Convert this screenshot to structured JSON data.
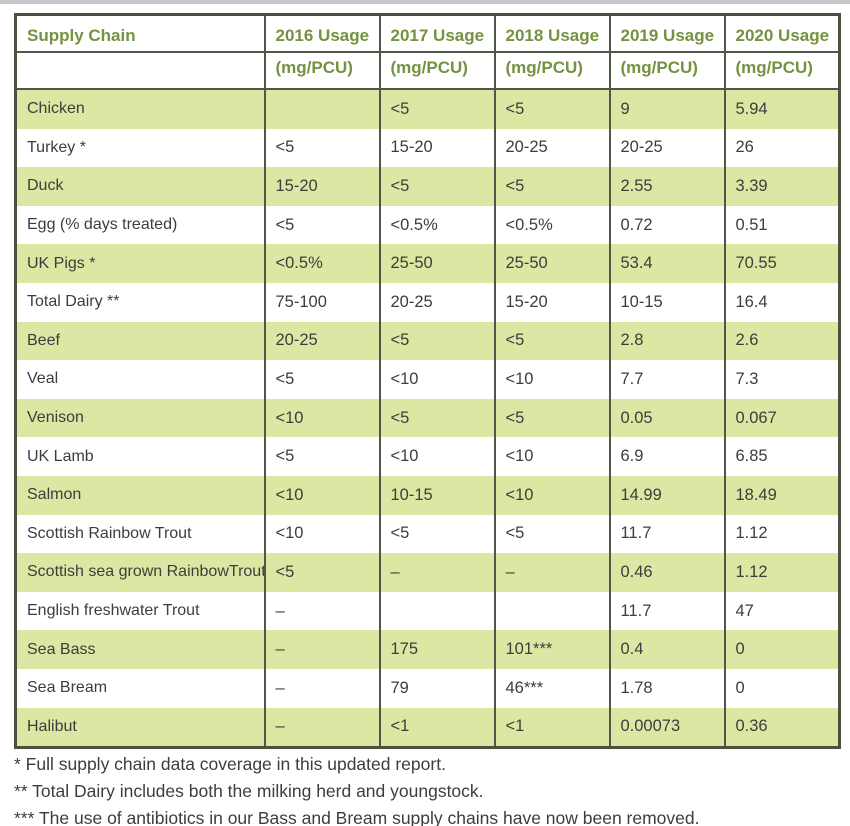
{
  "table": {
    "columns": [
      {
        "title": "Supply Chain",
        "subtitle": ""
      },
      {
        "title": "2016 Usage",
        "subtitle": "(mg/PCU)"
      },
      {
        "title": "2017 Usage",
        "subtitle": "(mg/PCU)"
      },
      {
        "title": "2018 Usage",
        "subtitle": "(mg/PCU)"
      },
      {
        "title": "2019 Usage",
        "subtitle": "(mg/PCU)"
      },
      {
        "title": "2020 Usage",
        "subtitle": "(mg/PCU)"
      }
    ],
    "rows": [
      {
        "name": "Chicken",
        "values": [
          "",
          "<5",
          "<5",
          "9",
          "5.94"
        ]
      },
      {
        "name": "Turkey *",
        "values": [
          "<5",
          "15-20",
          "20-25",
          "20-25",
          "26"
        ]
      },
      {
        "name": "Duck",
        "values": [
          "15-20",
          "<5",
          "<5",
          "2.55",
          "3.39"
        ]
      },
      {
        "name": "Egg (% days treated)",
        "values": [
          "<5",
          "<0.5%",
          "<0.5%",
          "0.72",
          "0.51"
        ]
      },
      {
        "name": "UK Pigs *",
        "values": [
          "<0.5%",
          "25-50",
          "25-50",
          "53.4",
          "70.55"
        ]
      },
      {
        "name": "Total Dairy **",
        "values": [
          "75-100",
          "20-25",
          "15-20",
          "10-15",
          "16.4"
        ]
      },
      {
        "name": "Beef",
        "values": [
          "20-25",
          "<5",
          "<5",
          "2.8",
          "2.6"
        ]
      },
      {
        "name": "Veal",
        "values": [
          "<5",
          "<10",
          "<10",
          "7.7",
          "7.3"
        ]
      },
      {
        "name": "Venison",
        "values": [
          "<10",
          "<5",
          "<5",
          "0.05",
          "0.067"
        ]
      },
      {
        "name": "UK Lamb",
        "values": [
          "<5",
          "<10",
          "<10",
          "6.9",
          "6.85"
        ]
      },
      {
        "name": "Salmon",
        "values": [
          "<10",
          "10-15",
          "<10",
          "14.99",
          "18.49"
        ]
      },
      {
        "name": "Scottish Rainbow Trout",
        "values": [
          "<10",
          "<5",
          "<5",
          "11.7",
          "1.12"
        ]
      },
      {
        "name": "Scottish sea grown RainbowTrout",
        "values": [
          "<5",
          "–",
          "–",
          "0.46",
          "1.12"
        ]
      },
      {
        "name": "English freshwater Trout",
        "values": [
          "–",
          "",
          "",
          "11.7",
          "47"
        ]
      },
      {
        "name": "Sea Bass",
        "values": [
          "–",
          "175",
          "101***",
          "0.4",
          "0"
        ]
      },
      {
        "name": "Sea Bream",
        "values": [
          "–",
          "79",
          "46***",
          "1.78",
          "0"
        ]
      },
      {
        "name": "Halibut",
        "values": [
          "–",
          "<1",
          "<1",
          "0.00073",
          "0.36"
        ]
      }
    ]
  },
  "footnotes": [
    "* Full supply chain data coverage in this updated report.",
    "** Total Dairy includes both the milking herd and youngstock.",
    "*** The use of antibiotics in our Bass and Bream supply chains have now been removed."
  ],
  "colors": {
    "row_green": "#dde6a3",
    "header_text_green": "#74923f",
    "body_text": "#3d3d3d",
    "grid_line": "#4d584a",
    "outer_border": "#49523f",
    "top_strip": "#c7c7c7"
  }
}
